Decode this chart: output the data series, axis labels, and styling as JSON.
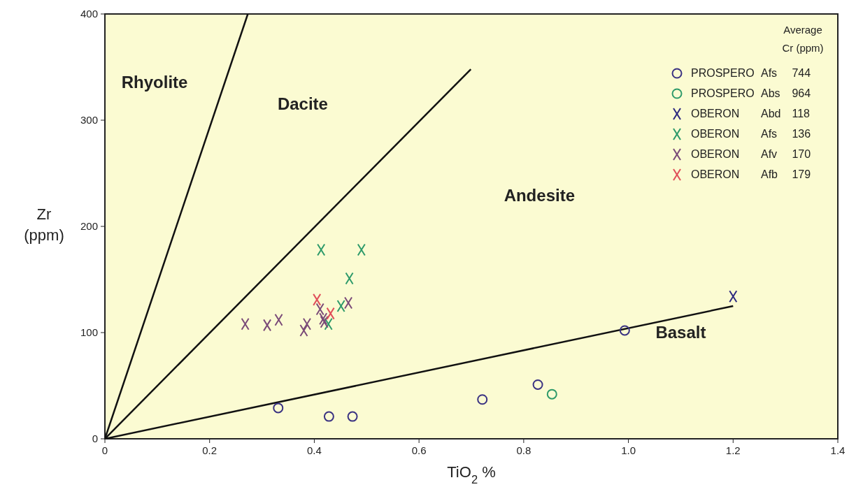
{
  "chart_data": {
    "type": "scatter",
    "xlabel": "TiO$_{2}$ %",
    "ylabel": "Zr\n(ppm)",
    "legend_title": "Average\nCr (ppm)",
    "legend": "top right",
    "grid": false,
    "xlim": [
      0,
      1.4
    ],
    "ylim": [
      0,
      400
    ],
    "xticks": [
      0,
      0.2,
      0.4,
      0.6,
      0.8,
      {
        "value": 1,
        "label": "1.0"
      },
      1.2,
      1.4
    ],
    "yticks": [
      0,
      100,
      200,
      300,
      400
    ],
    "series": [
      {
        "type": "line",
        "color": "#111111",
        "marker": "none",
        "line_style": "solid",
        "x": [
          0,
          0.273
        ],
        "values": [
          0,
          400
        ]
      },
      {
        "type": "line",
        "color": "#111111",
        "marker": "none",
        "line_style": "solid",
        "x": [
          0,
          0.699
        ],
        "values": [
          0,
          348
        ]
      },
      {
        "type": "line",
        "color": "#111111",
        "marker": "none",
        "line_style": "solid",
        "x": [
          0,
          1.2
        ],
        "values": [
          0,
          125
        ]
      },
      {
        "name": "PROSPERO Afs 744",
        "color": "#3a3282",
        "marker": "circle",
        "x": [
          0.331,
          0.428,
          0.473,
          0.721,
          0.827,
          0.993
        ],
        "values": [
          29,
          21,
          21,
          37,
          51,
          102
        ]
      },
      {
        "name": "PROSPERO Abs 964",
        "color": "#2e9a6a",
        "marker": "circle",
        "x": [
          0.854
        ],
        "values": [
          42
        ]
      },
      {
        "name": "OBERON Abd 118",
        "color": "#2e2a80",
        "marker": "cross",
        "x": [
          1.2
        ],
        "values": [
          134
        ]
      },
      {
        "name": "OBERON Afs 136",
        "color": "#2e9a6a",
        "marker": "cross",
        "x": [
          0.413,
          0.49,
          0.467,
          0.451,
          0.427
        ],
        "values": [
          178,
          178,
          151,
          125,
          108
        ]
      },
      {
        "name": "OBERON Afv 170",
        "color": "#7a4a78",
        "marker": "cross",
        "x": [
          0.268,
          0.31,
          0.332,
          0.38,
          0.386,
          0.411,
          0.417,
          0.419,
          0.465
        ],
        "values": [
          108,
          107,
          112,
          102,
          108,
          122,
          113,
          110,
          128
        ]
      },
      {
        "name": "OBERON Afb 179",
        "color": "#e0505a",
        "marker": "cross",
        "x": [
          0.405,
          0.431
        ],
        "values": [
          131,
          118
        ]
      }
    ],
    "annotations": [
      "Rhyolite",
      "Dacite",
      "Andesite",
      "Basalt"
    ]
  }
}
